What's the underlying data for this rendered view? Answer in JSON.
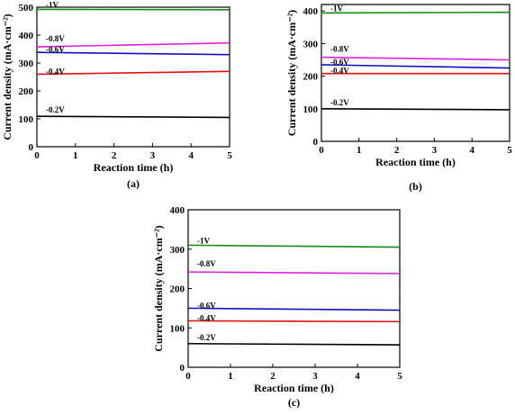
{
  "colors": {
    "-1V": "#1a8a1a",
    "-0.8V": "#e020e0",
    "-0.6V": "#1010c0",
    "-0.4V": "#e01010",
    "-0.2V": "#000000"
  },
  "chart_data": [
    {
      "type": "line",
      "panel_label": "(a)",
      "xlabel": "Reaction time (h)",
      "ylabel": "Current density (mA·cm⁻²)",
      "xlim": [
        0,
        5
      ],
      "ylim": [
        0,
        500
      ],
      "xticks": [
        "0",
        "1",
        "2",
        "3",
        "4",
        "5"
      ],
      "yticks": [
        "0",
        "100",
        "200",
        "300",
        "400",
        "500"
      ],
      "series": [
        {
          "name": "-1V",
          "x": [
            0,
            5
          ],
          "values": [
            492,
            491
          ]
        },
        {
          "name": "-0.8V",
          "x": [
            0,
            5
          ],
          "values": [
            358,
            372
          ]
        },
        {
          "name": "-0.6V",
          "x": [
            0,
            5
          ],
          "values": [
            338,
            330
          ]
        },
        {
          "name": "-0.4V",
          "x": [
            0,
            5
          ],
          "values": [
            260,
            270
          ]
        },
        {
          "name": "-0.2V",
          "x": [
            0,
            5
          ],
          "values": [
            109,
            105
          ]
        }
      ]
    },
    {
      "type": "line",
      "panel_label": "(b)",
      "xlabel": "Reaction time (h)",
      "ylabel": "Current density (mA·cm⁻²)",
      "xlim": [
        0,
        5
      ],
      "ylim": [
        0,
        420
      ],
      "xticks": [
        "0",
        "1",
        "2",
        "3",
        "4",
        "5"
      ],
      "yticks": [
        "0",
        "100",
        "200",
        "300",
        "400"
      ],
      "series": [
        {
          "name": "-1V",
          "x": [
            0,
            5
          ],
          "values": [
            394,
            396
          ]
        },
        {
          "name": "-0.8V",
          "x": [
            0,
            5
          ],
          "values": [
            258,
            250
          ]
        },
        {
          "name": "-0.6V",
          "x": [
            0,
            5
          ],
          "values": [
            235,
            225
          ]
        },
        {
          "name": "-0.4V",
          "x": [
            0,
            5
          ],
          "values": [
            208,
            208
          ]
        },
        {
          "name": "-0.2V",
          "x": [
            0,
            5
          ],
          "values": [
            100,
            97
          ]
        }
      ]
    },
    {
      "type": "line",
      "panel_label": "(c)",
      "xlabel": "Reaction time (h)",
      "ylabel": "Current density (mA·cm⁻²)",
      "xlim": [
        0,
        5
      ],
      "ylim": [
        0,
        400
      ],
      "xticks": [
        "0",
        "1",
        "2",
        "3",
        "4",
        "5"
      ],
      "yticks": [
        "0",
        "100",
        "200",
        "300",
        "400"
      ],
      "series": [
        {
          "name": "-1V",
          "x": [
            0,
            5
          ],
          "values": [
            310,
            305
          ]
        },
        {
          "name": "-0.8V",
          "x": [
            0,
            5
          ],
          "values": [
            242,
            238
          ]
        },
        {
          "name": "-0.6V",
          "x": [
            0,
            5
          ],
          "values": [
            150,
            145
          ]
        },
        {
          "name": "-0.4V",
          "x": [
            0,
            5
          ],
          "values": [
            118,
            116
          ]
        },
        {
          "name": "-0.2V",
          "x": [
            0,
            5
          ],
          "values": [
            60,
            57
          ]
        }
      ]
    }
  ]
}
